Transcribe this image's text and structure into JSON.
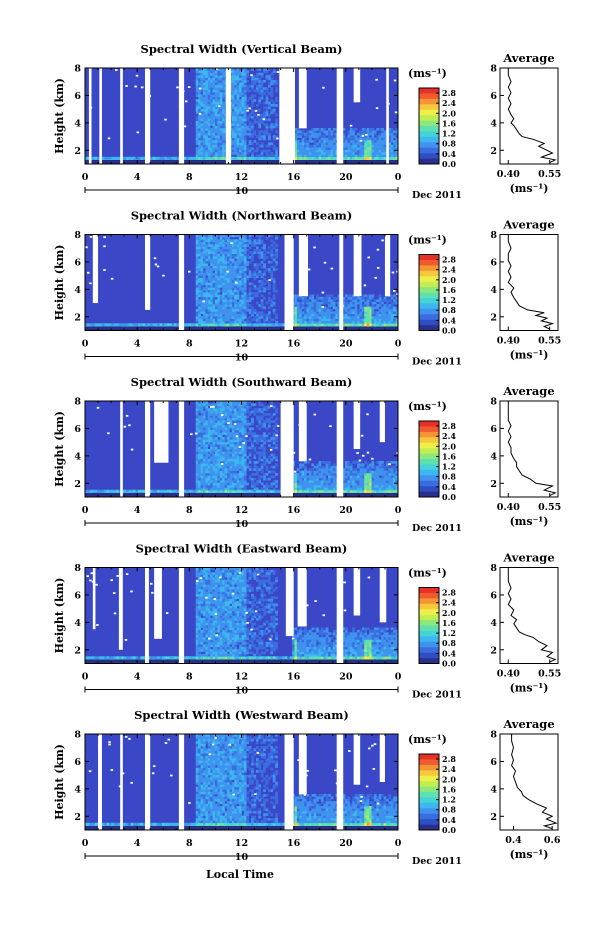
{
  "figure": {
    "xlabel": "Local Time",
    "date_label": "Dec 2011",
    "day_label": "10",
    "colorbar_unit": "(ms⁻¹)",
    "colorbar_colors": [
      "#2b2f8c",
      "#2e4fc4",
      "#3a6ee0",
      "#3f93ef",
      "#3cb7f0",
      "#45d3d8",
      "#5fe0b0",
      "#8ce87a",
      "#c3ee52",
      "#eef04a",
      "#f7c73e",
      "#f59434",
      "#ef5a2f",
      "#e63028"
    ]
  },
  "chart_data": [
    {
      "type": "heatmap",
      "title": "Spectral Width (Vertical Beam)",
      "ylabel": "Height (km)",
      "xlim": [
        0,
        24
      ],
      "ylim": [
        1,
        8
      ],
      "xticks": [
        "0",
        "4",
        "8",
        "12",
        "16",
        "20",
        "0"
      ],
      "yticks": [
        "2",
        "4",
        "6",
        "8"
      ],
      "colorbar": {
        "ticks": [
          "0.0",
          "0.4",
          "0.8",
          "1.2",
          "1.6",
          "2.0",
          "2.4",
          "2.8"
        ],
        "range": [
          0,
          3.0
        ]
      },
      "gap_columns": [
        [
          0.3,
          0.5
        ],
        [
          1.1,
          1.3
        ],
        [
          2.7,
          2.9
        ],
        [
          4.6,
          5.0
        ],
        [
          7.2,
          7.6
        ],
        [
          10.8,
          11.2
        ],
        [
          14.9,
          16.1
        ],
        [
          19.3,
          19.8
        ],
        [
          23.1,
          23.3
        ]
      ],
      "gap_partial": [
        [
          16.4,
          17.0,
          3.6,
          8
        ],
        [
          20.6,
          21.1,
          5.5,
          8
        ]
      ],
      "profile": {
        "title": "Average",
        "xlabel": "(ms⁻¹)",
        "xticks": [
          "0.40",
          "0.55"
        ],
        "xlim": [
          0.37,
          0.58
        ],
        "yticks": [
          "2",
          "4",
          "6",
          "8"
        ],
        "ylim": [
          1,
          8
        ],
        "points": [
          [
            0.55,
            1.1
          ],
          [
            0.57,
            1.3
          ],
          [
            0.52,
            1.5
          ],
          [
            0.56,
            1.8
          ],
          [
            0.54,
            2.0
          ],
          [
            0.51,
            2.3
          ],
          [
            0.53,
            2.5
          ],
          [
            0.49,
            2.8
          ],
          [
            0.45,
            3.0
          ],
          [
            0.44,
            3.2
          ],
          [
            0.43,
            3.5
          ],
          [
            0.42,
            3.8
          ],
          [
            0.41,
            4.0
          ],
          [
            0.42,
            4.3
          ],
          [
            0.41,
            4.6
          ],
          [
            0.4,
            5.0
          ],
          [
            0.41,
            5.4
          ],
          [
            0.4,
            5.8
          ],
          [
            0.41,
            6.2
          ],
          [
            0.4,
            6.6
          ],
          [
            0.41,
            7.0
          ],
          [
            0.4,
            7.5
          ],
          [
            0.4,
            8.0
          ]
        ]
      }
    },
    {
      "type": "heatmap",
      "title": "Spectral Width (Northward Beam)",
      "ylabel": "Height (km)",
      "xlim": [
        0,
        24
      ],
      "ylim": [
        1,
        8
      ],
      "xticks": [
        "0",
        "4",
        "8",
        "12",
        "16",
        "20",
        "0"
      ],
      "yticks": [
        "2",
        "4",
        "6",
        "8"
      ],
      "colorbar": {
        "ticks": [
          "0.0",
          "0.4",
          "0.8",
          "1.2",
          "1.6",
          "2.0",
          "2.4",
          "2.8"
        ],
        "range": [
          0,
          3.0
        ]
      },
      "gap_columns": [
        [
          7.2,
          7.6
        ],
        [
          15.3,
          16.0
        ],
        [
          19.5,
          19.8
        ]
      ],
      "gap_partial": [
        [
          0.6,
          1.0,
          3.0,
          8
        ],
        [
          4.6,
          5.0,
          2.5,
          8
        ],
        [
          16.4,
          17.1,
          3.5,
          8
        ],
        [
          20.6,
          21.2,
          3.5,
          8
        ],
        [
          23.0,
          23.4,
          3.5,
          8
        ]
      ],
      "profile": {
        "title": "Average",
        "xlabel": "(ms⁻¹)",
        "xticks": [
          "0.40",
          "0.55"
        ],
        "xlim": [
          0.37,
          0.58
        ],
        "yticks": [
          "2",
          "4",
          "6",
          "8"
        ],
        "ylim": [
          1,
          8
        ],
        "points": [
          [
            0.55,
            1.1
          ],
          [
            0.53,
            1.3
          ],
          [
            0.56,
            1.5
          ],
          [
            0.52,
            1.7
          ],
          [
            0.54,
            1.9
          ],
          [
            0.5,
            2.1
          ],
          [
            0.53,
            2.3
          ],
          [
            0.47,
            2.5
          ],
          [
            0.44,
            2.8
          ],
          [
            0.43,
            3.1
          ],
          [
            0.42,
            3.4
          ],
          [
            0.41,
            3.8
          ],
          [
            0.42,
            4.1
          ],
          [
            0.4,
            4.5
          ],
          [
            0.41,
            4.9
          ],
          [
            0.4,
            5.3
          ],
          [
            0.41,
            5.7
          ],
          [
            0.4,
            6.1
          ],
          [
            0.4,
            6.6
          ],
          [
            0.41,
            7.0
          ],
          [
            0.4,
            7.5
          ],
          [
            0.4,
            8.0
          ]
        ]
      }
    },
    {
      "type": "heatmap",
      "title": "Spectral Width (Southward Beam)",
      "ylabel": "Height (km)",
      "xlim": [
        0,
        24
      ],
      "ylim": [
        1,
        8
      ],
      "xticks": [
        "0",
        "4",
        "8",
        "12",
        "16",
        "20",
        "0"
      ],
      "yticks": [
        "2",
        "4",
        "6",
        "8"
      ],
      "colorbar": {
        "ticks": [
          "0.0",
          "0.4",
          "0.8",
          "1.2",
          "1.6",
          "2.0",
          "2.4",
          "2.8"
        ],
        "range": [
          0,
          3.0
        ]
      },
      "gap_columns": [
        [
          2.7,
          2.9
        ],
        [
          4.6,
          5.0
        ],
        [
          7.2,
          7.6
        ],
        [
          15.0,
          16.0
        ],
        [
          19.3,
          19.8
        ]
      ],
      "gap_partial": [
        [
          5.3,
          6.4,
          3.5,
          8
        ],
        [
          16.4,
          17.0,
          3.6,
          8
        ],
        [
          20.6,
          21.1,
          4.5,
          8
        ],
        [
          22.6,
          23.0,
          5.0,
          8
        ]
      ],
      "profile": {
        "title": "Average",
        "xlabel": "(ms⁻¹)",
        "xticks": [
          "0.40",
          "0.55"
        ],
        "xlim": [
          0.37,
          0.58
        ],
        "yticks": [
          "2",
          "4",
          "6",
          "8"
        ],
        "ylim": [
          1,
          8
        ],
        "points": [
          [
            0.55,
            1.1
          ],
          [
            0.57,
            1.3
          ],
          [
            0.53,
            1.5
          ],
          [
            0.56,
            1.8
          ],
          [
            0.5,
            2.0
          ],
          [
            0.48,
            2.3
          ],
          [
            0.45,
            2.6
          ],
          [
            0.44,
            2.9
          ],
          [
            0.43,
            3.2
          ],
          [
            0.43,
            3.5
          ],
          [
            0.42,
            3.8
          ],
          [
            0.41,
            4.2
          ],
          [
            0.41,
            4.6
          ],
          [
            0.4,
            5.0
          ],
          [
            0.41,
            5.4
          ],
          [
            0.4,
            5.8
          ],
          [
            0.41,
            6.2
          ],
          [
            0.4,
            6.6
          ],
          [
            0.4,
            7.0
          ],
          [
            0.4,
            7.5
          ],
          [
            0.4,
            8.0
          ]
        ]
      }
    },
    {
      "type": "heatmap",
      "title": "Spectral Width (Eastward Beam)",
      "ylabel": "Height (km)",
      "xlim": [
        0,
        24
      ],
      "ylim": [
        1,
        8
      ],
      "xticks": [
        "0",
        "4",
        "8",
        "12",
        "16",
        "20",
        "0"
      ],
      "yticks": [
        "2",
        "4",
        "6",
        "8"
      ],
      "colorbar": {
        "ticks": [
          "0.0",
          "0.4",
          "0.8",
          "1.2",
          "1.6",
          "2.0",
          "2.4",
          "2.8"
        ],
        "range": [
          0,
          3.0
        ]
      },
      "gap_columns": [
        [
          4.6,
          4.9
        ],
        [
          7.2,
          7.6
        ],
        [
          19.3,
          19.8
        ]
      ],
      "gap_partial": [
        [
          0.6,
          0.8,
          3.5,
          8
        ],
        [
          2.6,
          2.9,
          2.0,
          8
        ],
        [
          5.3,
          5.9,
          2.8,
          8
        ],
        [
          15.4,
          16.0,
          3.0,
          8
        ],
        [
          16.3,
          17.0,
          3.7,
          8
        ],
        [
          20.6,
          21.1,
          4.5,
          8
        ],
        [
          22.6,
          23.1,
          4.0,
          8
        ]
      ],
      "profile": {
        "title": "Average",
        "xlabel": "(ms⁻¹)",
        "xticks": [
          "0.40",
          "0.55"
        ],
        "xlim": [
          0.37,
          0.58
        ],
        "yticks": [
          "2",
          "4",
          "6",
          "8"
        ],
        "ylim": [
          1,
          8
        ],
        "points": [
          [
            0.55,
            1.1
          ],
          [
            0.57,
            1.3
          ],
          [
            0.54,
            1.5
          ],
          [
            0.56,
            1.8
          ],
          [
            0.52,
            2.0
          ],
          [
            0.54,
            2.3
          ],
          [
            0.51,
            2.6
          ],
          [
            0.49,
            2.9
          ],
          [
            0.46,
            3.1
          ],
          [
            0.44,
            3.3
          ],
          [
            0.43,
            3.6
          ],
          [
            0.42,
            3.9
          ],
          [
            0.43,
            4.2
          ],
          [
            0.41,
            4.5
          ],
          [
            0.42,
            4.9
          ],
          [
            0.4,
            5.3
          ],
          [
            0.41,
            5.7
          ],
          [
            0.4,
            6.1
          ],
          [
            0.41,
            6.5
          ],
          [
            0.4,
            7.0
          ],
          [
            0.4,
            7.5
          ],
          [
            0.4,
            8.0
          ]
        ]
      }
    },
    {
      "type": "heatmap",
      "title": "Spectral Width (Westward Beam)",
      "ylabel": "Height (km)",
      "xlim": [
        0,
        24
      ],
      "ylim": [
        1,
        8
      ],
      "xticks": [
        "0",
        "4",
        "8",
        "12",
        "16",
        "20",
        "0"
      ],
      "yticks": [
        "2",
        "4",
        "6",
        "8"
      ],
      "colorbar": {
        "ticks": [
          "0.0",
          "0.4",
          "0.8",
          "1.2",
          "1.6",
          "2.0",
          "2.4",
          "2.8"
        ],
        "range": [
          0,
          3.0
        ]
      },
      "gap_columns": [
        [
          1.0,
          1.3
        ],
        [
          2.7,
          2.9
        ],
        [
          4.6,
          5.0
        ],
        [
          7.2,
          7.6
        ],
        [
          15.3,
          16.0
        ],
        [
          19.3,
          19.8
        ]
      ],
      "gap_partial": [
        [
          16.4,
          17.0,
          3.6,
          8
        ],
        [
          20.6,
          21.1,
          4.3,
          8
        ],
        [
          22.6,
          23.0,
          4.5,
          8
        ]
      ],
      "profile": {
        "title": "Average",
        "xlabel": "(ms⁻¹)",
        "xticks": [
          "0.4",
          "0.6"
        ],
        "xlim": [
          0.33,
          0.63
        ],
        "yticks": [
          "2",
          "4",
          "6",
          "8"
        ],
        "ylim": [
          1,
          8
        ],
        "points": [
          [
            0.6,
            1.1
          ],
          [
            0.56,
            1.3
          ],
          [
            0.62,
            1.5
          ],
          [
            0.57,
            1.8
          ],
          [
            0.6,
            2.0
          ],
          [
            0.55,
            2.3
          ],
          [
            0.57,
            2.6
          ],
          [
            0.52,
            2.9
          ],
          [
            0.48,
            3.2
          ],
          [
            0.45,
            3.5
          ],
          [
            0.44,
            3.8
          ],
          [
            0.42,
            4.1
          ],
          [
            0.41,
            4.5
          ],
          [
            0.4,
            4.9
          ],
          [
            0.41,
            5.3
          ],
          [
            0.39,
            5.7
          ],
          [
            0.4,
            6.1
          ],
          [
            0.39,
            6.5
          ],
          [
            0.4,
            7.0
          ],
          [
            0.39,
            7.5
          ],
          [
            0.39,
            8.0
          ]
        ]
      }
    }
  ]
}
